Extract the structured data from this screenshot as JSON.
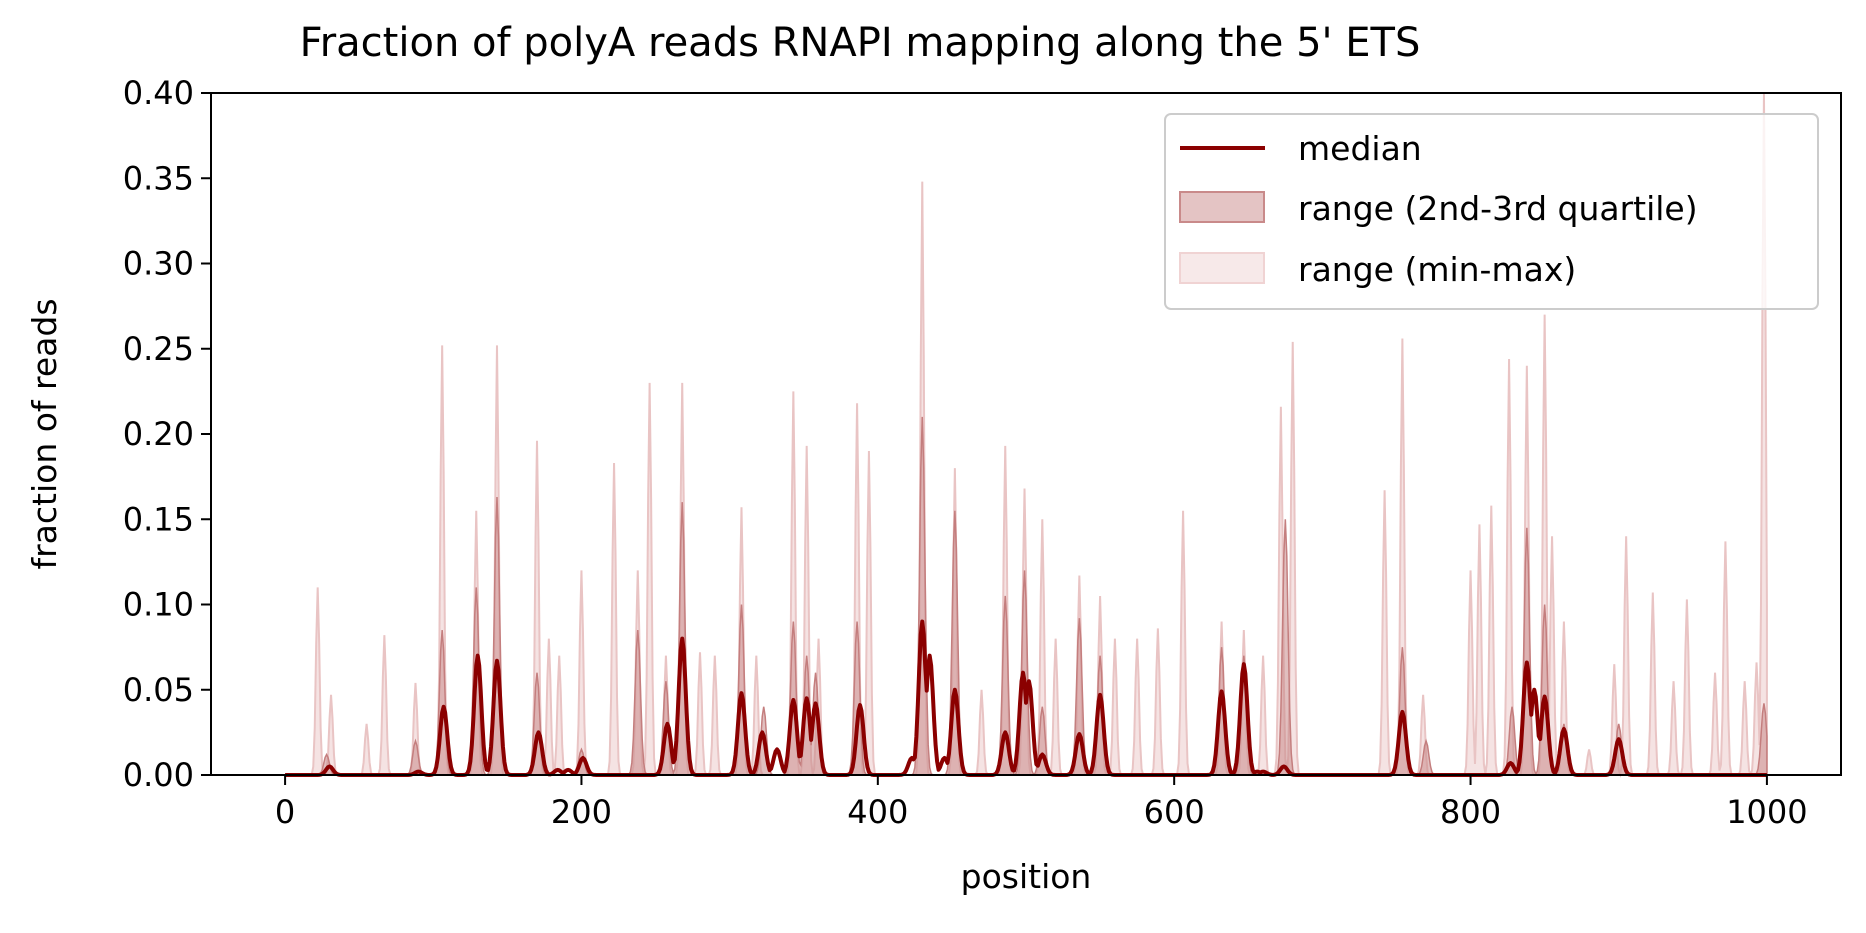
{
  "chart_data": {
    "type": "area",
    "title": "Fraction of polyA reads RNAPI mapping along the 5' ETS",
    "xlabel": "position",
    "ylabel": "fraction of reads",
    "xlim": [
      -50,
      1050
    ],
    "ylim": [
      0,
      0.4
    ],
    "xticks": [
      0,
      200,
      400,
      600,
      800,
      1000
    ],
    "xtick_labels": [
      "0",
      "200",
      "400",
      "600",
      "800",
      "1000"
    ],
    "yticks": [
      0.0,
      0.05,
      0.1,
      0.15,
      0.2,
      0.25,
      0.3,
      0.35,
      0.4
    ],
    "ytick_labels": [
      "0.00",
      "0.05",
      "0.10",
      "0.15",
      "0.20",
      "0.25",
      "0.30",
      "0.35",
      "0.40"
    ],
    "grid": false,
    "legend_position": "top-right",
    "colors": {
      "median": "#8b0000",
      "iqr_fill": "#c98a8a",
      "minmax_fill": "#f1dada"
    },
    "series": [
      {
        "name": "median",
        "kind": "line",
        "peaks": [
          [
            30,
            0.005
          ],
          [
            90,
            0.002
          ],
          [
            107,
            0.04
          ],
          [
            130,
            0.07
          ],
          [
            143,
            0.067
          ],
          [
            171,
            0.025
          ],
          [
            184,
            0.003
          ],
          [
            191,
            0.003
          ],
          [
            201,
            0.01
          ],
          [
            258,
            0.03
          ],
          [
            268,
            0.08
          ],
          [
            308,
            0.048
          ],
          [
            322,
            0.025
          ],
          [
            332,
            0.015
          ],
          [
            343,
            0.044
          ],
          [
            352,
            0.045
          ],
          [
            358,
            0.042
          ],
          [
            388,
            0.041
          ],
          [
            423,
            0.01
          ],
          [
            430,
            0.09
          ],
          [
            435,
            0.07
          ],
          [
            445,
            0.01
          ],
          [
            452,
            0.05
          ],
          [
            486,
            0.025
          ],
          [
            498,
            0.06
          ],
          [
            502,
            0.055
          ],
          [
            511,
            0.012
          ],
          [
            536,
            0.024
          ],
          [
            550,
            0.047
          ],
          [
            632,
            0.049
          ],
          [
            647,
            0.065
          ],
          [
            656,
            0.002
          ],
          [
            660,
            0.002
          ],
          [
            674,
            0.005
          ],
          [
            754,
            0.037
          ],
          [
            827,
            0.007
          ],
          [
            838,
            0.066
          ],
          [
            843,
            0.05
          ],
          [
            850,
            0.046
          ],
          [
            863,
            0.027
          ],
          [
            900,
            0.021
          ]
        ]
      },
      {
        "name": "range (2nd-3rd quartile)",
        "kind": "band",
        "peaks": [
          [
            28,
            0.012
          ],
          [
            88,
            0.02
          ],
          [
            106,
            0.085
          ],
          [
            129,
            0.11
          ],
          [
            143,
            0.163
          ],
          [
            170,
            0.06
          ],
          [
            200,
            0.015
          ],
          [
            238,
            0.085
          ],
          [
            257,
            0.055
          ],
          [
            268,
            0.16
          ],
          [
            308,
            0.1
          ],
          [
            323,
            0.04
          ],
          [
            343,
            0.09
          ],
          [
            352,
            0.07
          ],
          [
            358,
            0.06
          ],
          [
            386,
            0.09
          ],
          [
            430,
            0.21
          ],
          [
            452,
            0.155
          ],
          [
            486,
            0.105
          ],
          [
            499,
            0.12
          ],
          [
            511,
            0.04
          ],
          [
            536,
            0.092
          ],
          [
            550,
            0.07
          ],
          [
            632,
            0.075
          ],
          [
            647,
            0.07
          ],
          [
            675,
            0.15
          ],
          [
            754,
            0.075
          ],
          [
            770,
            0.02
          ],
          [
            828,
            0.04
          ],
          [
            838,
            0.145
          ],
          [
            850,
            0.1
          ],
          [
            863,
            0.03
          ],
          [
            900,
            0.03
          ],
          [
            998,
            0.042
          ]
        ]
      },
      {
        "name": "range (min-max)",
        "kind": "band",
        "peaks": [
          [
            22,
            0.11
          ],
          [
            31,
            0.047
          ],
          [
            55,
            0.03
          ],
          [
            67,
            0.082
          ],
          [
            88,
            0.054
          ],
          [
            106,
            0.252
          ],
          [
            129,
            0.155
          ],
          [
            143,
            0.252
          ],
          [
            170,
            0.196
          ],
          [
            178,
            0.08
          ],
          [
            185,
            0.07
          ],
          [
            200,
            0.12
          ],
          [
            222,
            0.183
          ],
          [
            238,
            0.12
          ],
          [
            246,
            0.23
          ],
          [
            257,
            0.07
          ],
          [
            268,
            0.23
          ],
          [
            280,
            0.072
          ],
          [
            290,
            0.07
          ],
          [
            308,
            0.157
          ],
          [
            318,
            0.07
          ],
          [
            343,
            0.225
          ],
          [
            352,
            0.193
          ],
          [
            360,
            0.08
          ],
          [
            386,
            0.218
          ],
          [
            394,
            0.19
          ],
          [
            430,
            0.348
          ],
          [
            452,
            0.18
          ],
          [
            470,
            0.05
          ],
          [
            486,
            0.193
          ],
          [
            499,
            0.168
          ],
          [
            511,
            0.15
          ],
          [
            520,
            0.08
          ],
          [
            536,
            0.117
          ],
          [
            550,
            0.105
          ],
          [
            560,
            0.08
          ],
          [
            575,
            0.08
          ],
          [
            589,
            0.086
          ],
          [
            606,
            0.155
          ],
          [
            632,
            0.09
          ],
          [
            647,
            0.085
          ],
          [
            660,
            0.07
          ],
          [
            672,
            0.216
          ],
          [
            680,
            0.254
          ],
          [
            742,
            0.167
          ],
          [
            754,
            0.256
          ],
          [
            768,
            0.047
          ],
          [
            800,
            0.12
          ],
          [
            806,
            0.147
          ],
          [
            814,
            0.158
          ],
          [
            826,
            0.244
          ],
          [
            838,
            0.24
          ],
          [
            850,
            0.27
          ],
          [
            855,
            0.14
          ],
          [
            863,
            0.09
          ],
          [
            880,
            0.015
          ],
          [
            897,
            0.065
          ],
          [
            905,
            0.14
          ],
          [
            923,
            0.107
          ],
          [
            937,
            0.055
          ],
          [
            946,
            0.103
          ],
          [
            965,
            0.06
          ],
          [
            972,
            0.137
          ],
          [
            985,
            0.055
          ],
          [
            993,
            0.066
          ],
          [
            998,
            0.4
          ]
        ]
      }
    ],
    "legend": [
      {
        "label": "median",
        "swatch": "line"
      },
      {
        "label": "range (2nd-3rd quartile)",
        "swatch": "iqr"
      },
      {
        "label": "range (min-max)",
        "swatch": "minmax"
      }
    ]
  }
}
